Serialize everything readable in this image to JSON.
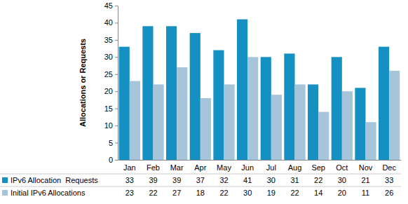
{
  "chart_data": {
    "type": "bar",
    "y_label": "Allocations or Requests",
    "categories": [
      "Jan",
      "Feb",
      "Mar",
      "Apr",
      "May",
      "Jun",
      "Jul",
      "Aug",
      "Sep",
      "Oct",
      "Nov",
      "Dec"
    ],
    "series": [
      {
        "name": "IPv6 Allocation  Requests",
        "color": "#1590c3",
        "values": [
          33,
          39,
          39,
          37,
          32,
          41,
          30,
          31,
          22,
          30,
          21,
          33
        ]
      },
      {
        "name": "Initial IPv6 Allocations",
        "color": "#a7c5da",
        "values": [
          23,
          22,
          27,
          18,
          22,
          30,
          19,
          22,
          14,
          20,
          11,
          26
        ]
      }
    ],
    "ylim": [
      0,
      45
    ],
    "yticks": [
      0,
      5,
      10,
      15,
      20,
      25,
      30,
      35,
      40,
      45
    ],
    "grid": false,
    "legend": "bottom"
  }
}
